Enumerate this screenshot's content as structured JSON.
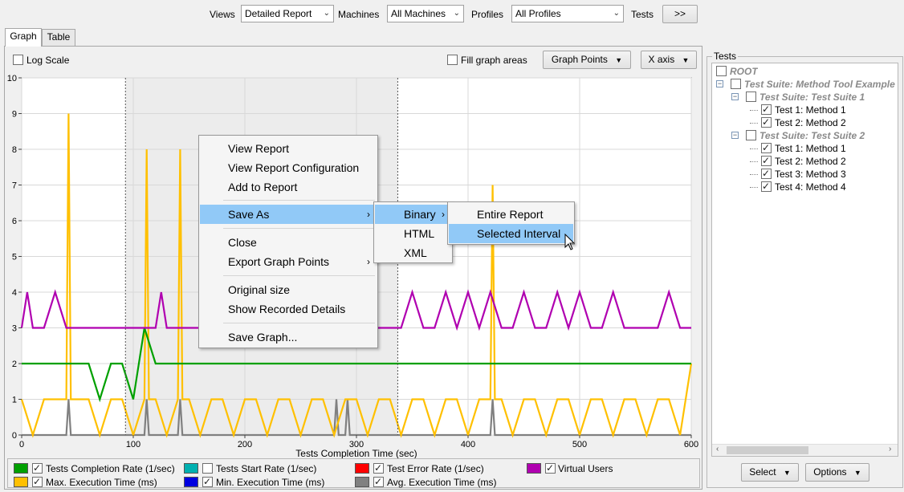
{
  "toolbar": {
    "views_label": "Views",
    "views_value": "Detailed Report",
    "machines_label": "Machines",
    "machines_value": "All Machines",
    "profiles_label": "Profiles",
    "profiles_value": "All Profiles",
    "tests_label": "Tests",
    "tests_button": ">>"
  },
  "tabs": [
    {
      "label": "Graph",
      "selected": true
    },
    {
      "label": "Table",
      "selected": false
    }
  ],
  "graph_options": {
    "log_scale_label": "Log Scale",
    "log_scale_checked": false,
    "fill_areas_label": "Fill graph areas",
    "fill_areas_checked": false,
    "graph_points_label": "Graph Points",
    "x_axis_label": "X axis"
  },
  "chart_data": {
    "type": "line",
    "xlabel": "Tests Completion Time (sec)",
    "ylabel": "",
    "xlim": [
      0,
      600
    ],
    "ylim": [
      0,
      10
    ],
    "x_ticks": [
      0,
      100,
      200,
      300,
      400,
      500,
      600
    ],
    "y_ticks": [
      0,
      1,
      2,
      3,
      4,
      5,
      6,
      7,
      8,
      9,
      10
    ],
    "selected_interval": [
      93,
      337
    ],
    "grid": true,
    "series": [
      {
        "name": "Virtual Users",
        "color": "#b000b0",
        "x": [
          0,
          5,
          10,
          20,
          30,
          40,
          50,
          60,
          70,
          80,
          90,
          100,
          110,
          120,
          125,
          130,
          140,
          150,
          160,
          170,
          180,
          190,
          200,
          210,
          220,
          230,
          240,
          250,
          260,
          270,
          280,
          290,
          300,
          310,
          320,
          330,
          340,
          350,
          360,
          370,
          380,
          390,
          400,
          410,
          420,
          430,
          440,
          450,
          460,
          470,
          480,
          490,
          500,
          510,
          520,
          530,
          540,
          550,
          560,
          570,
          580,
          590,
          600
        ],
        "y": [
          3,
          4,
          3,
          3,
          4,
          3,
          3,
          3,
          3,
          3,
          3,
          3,
          3,
          3,
          4,
          3,
          3,
          3,
          3,
          3,
          3,
          3,
          3,
          3,
          3,
          3,
          3,
          3,
          3,
          3,
          3,
          3,
          3,
          3,
          3,
          3,
          3,
          4,
          3,
          3,
          4,
          3,
          4,
          3,
          4,
          3,
          3,
          4,
          3,
          3,
          4,
          3,
          4,
          3,
          3,
          4,
          3,
          3,
          3,
          3,
          4,
          3,
          3
        ]
      },
      {
        "name": "Tests Completion Rate (1/sec)",
        "color": "#00a000",
        "x": [
          0,
          10,
          20,
          30,
          40,
          50,
          60,
          70,
          80,
          90,
          100,
          110,
          120,
          130,
          140,
          150,
          160,
          170,
          180,
          190,
          200,
          210,
          220,
          230,
          240,
          250,
          260,
          270,
          280,
          290,
          300,
          310,
          320,
          330,
          340,
          350,
          360,
          370,
          380,
          390,
          400,
          410,
          420,
          430,
          440,
          450,
          460,
          470,
          480,
          490,
          500,
          510,
          520,
          530,
          540,
          550,
          560,
          570,
          580,
          590,
          600
        ],
        "y": [
          2,
          2,
          2,
          2,
          2,
          2,
          2,
          1,
          2,
          2,
          1,
          3,
          2,
          2,
          2,
          2,
          2,
          2,
          2,
          2,
          2,
          2,
          2,
          2,
          2,
          2,
          2,
          2,
          2,
          2,
          2,
          2,
          2,
          2,
          2,
          2,
          2,
          2,
          2,
          2,
          2,
          2,
          2,
          2,
          2,
          2,
          2,
          2,
          2,
          2,
          2,
          2,
          2,
          2,
          2,
          2,
          2,
          2,
          2,
          2,
          2
        ]
      },
      {
        "name": "Max. Execution Time (ms)",
        "color": "#ffc000",
        "x": [
          0,
          10,
          20,
          30,
          40,
          42,
          44,
          50,
          60,
          70,
          80,
          90,
          100,
          110,
          112,
          114,
          120,
          130,
          140,
          142,
          144,
          150,
          160,
          170,
          180,
          190,
          200,
          210,
          220,
          230,
          240,
          250,
          260,
          270,
          280,
          290,
          300,
          310,
          320,
          330,
          340,
          350,
          360,
          370,
          380,
          390,
          400,
          410,
          420,
          422,
          424,
          430,
          440,
          450,
          460,
          470,
          480,
          490,
          500,
          510,
          520,
          530,
          540,
          550,
          560,
          570,
          580,
          590,
          600
        ],
        "y": [
          1,
          0,
          1,
          1,
          1,
          9,
          1,
          1,
          1,
          0,
          1,
          1,
          0,
          1,
          8,
          1,
          1,
          0,
          1,
          8,
          1,
          1,
          0,
          1,
          1,
          0,
          1,
          1,
          0,
          1,
          1,
          0,
          1,
          1,
          0,
          1,
          1,
          0,
          1,
          1,
          0,
          1,
          1,
          0,
          1,
          1,
          0,
          1,
          1,
          7,
          1,
          1,
          0,
          1,
          1,
          0,
          1,
          1,
          0,
          1,
          1,
          0,
          1,
          1,
          0,
          1,
          1,
          0,
          2
        ]
      },
      {
        "name": "Avg. Execution Time (ms)",
        "color": "#808080",
        "x": [
          0,
          40,
          42,
          44,
          110,
          112,
          114,
          140,
          142,
          144,
          280,
          282,
          284,
          290,
          292,
          294,
          420,
          422,
          424,
          600
        ],
        "y": [
          0,
          0,
          1,
          0,
          0,
          1,
          0,
          0,
          1,
          0,
          0,
          1,
          0,
          0,
          1,
          0,
          0,
          1,
          0,
          0
        ]
      }
    ]
  },
  "context_menu": {
    "items": [
      "View Report",
      "View Report Configuration",
      "Add to Report",
      "Save As",
      "Close",
      "Export Graph Points",
      "Original size",
      "Show Recorded Details",
      "Save Graph..."
    ],
    "save_as_sub": [
      "Binary",
      "HTML",
      "XML"
    ],
    "binary_sub": [
      "Entire Report",
      "Selected Interval"
    ]
  },
  "tests_panel": {
    "title": "Tests",
    "root": "ROOT",
    "suite": "Test Suite: Method Tool Example",
    "suite1": "Test Suite: Test Suite 1",
    "suite1_tests": [
      "Test 1: Method 1",
      "Test 2: Method 2"
    ],
    "suite2": "Test Suite: Test Suite 2",
    "suite2_tests": [
      "Test 1: Method 1",
      "Test 2: Method 2",
      "Test 3: Method 3",
      "Test 4: Method 4"
    ],
    "select_button": "Select",
    "options_button": "Options"
  },
  "legend": [
    {
      "label": "Tests Completion Rate (1/sec)",
      "color": "#00a000",
      "checked": true
    },
    {
      "label": "Tests Start Rate (1/sec)",
      "color": "#00b0b0",
      "checked": false
    },
    {
      "label": "Test Error Rate (1/sec)",
      "color": "#ff0000",
      "checked": true
    },
    {
      "label": "Virtual Users",
      "color": "#b000b0",
      "checked": true
    },
    {
      "label": "Max. Execution Time (ms)",
      "color": "#ffc000",
      "checked": true
    },
    {
      "label": "Min. Execution Time (ms)",
      "color": "#0000e0",
      "checked": true
    },
    {
      "label": "Avg. Execution Time (ms)",
      "color": "#808080",
      "checked": true
    }
  ]
}
